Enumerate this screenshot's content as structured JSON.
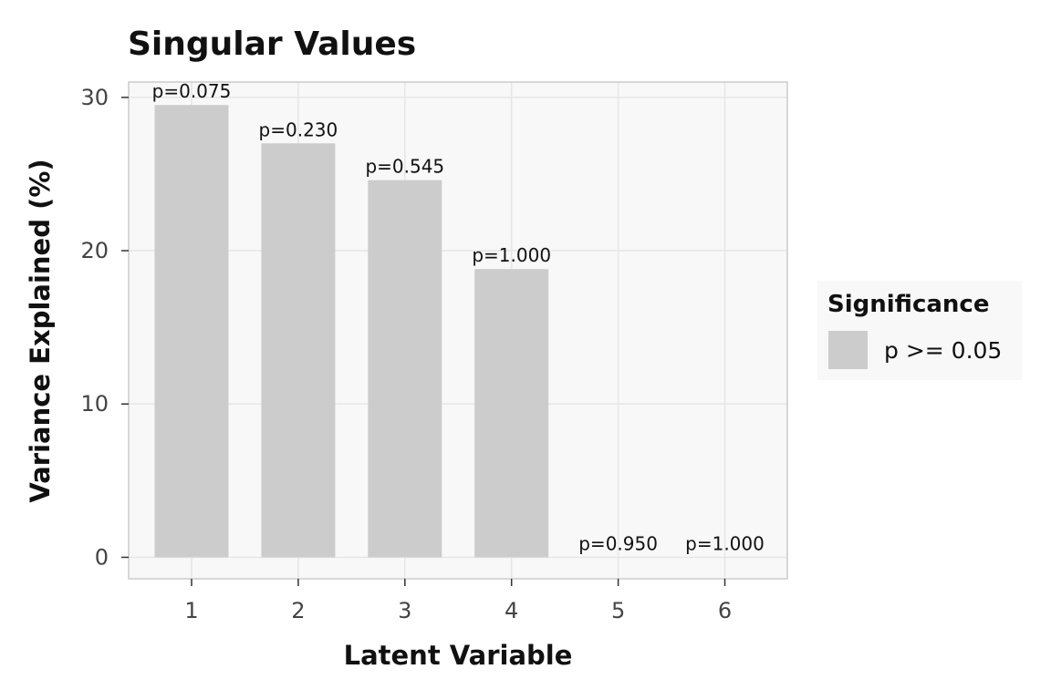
{
  "chart_data": {
    "type": "bar",
    "title": "Singular Values",
    "xlabel": "Latent Variable",
    "ylabel": "Variance Explained (%)",
    "categories": [
      "1",
      "2",
      "3",
      "4",
      "5",
      "6"
    ],
    "values": [
      29.5,
      27.0,
      24.6,
      18.8,
      0.0,
      0.0
    ],
    "bar_labels": [
      "p=0.075",
      "p=0.230",
      "p=0.545",
      "p=1.000",
      "p=0.950",
      "p=1.000"
    ],
    "ylim": [
      -1.4,
      31.0
    ],
    "yticks": [
      0,
      10,
      20,
      30
    ],
    "grid": true,
    "legend": {
      "title": "Significance",
      "entries": [
        "p >= 0.05"
      ],
      "placement": "right"
    },
    "colors": {
      "bar": "#cccccc",
      "panel_background": "#f8f8f8",
      "grid": "#e6e6e6",
      "panel_border": "#cccccc"
    }
  }
}
